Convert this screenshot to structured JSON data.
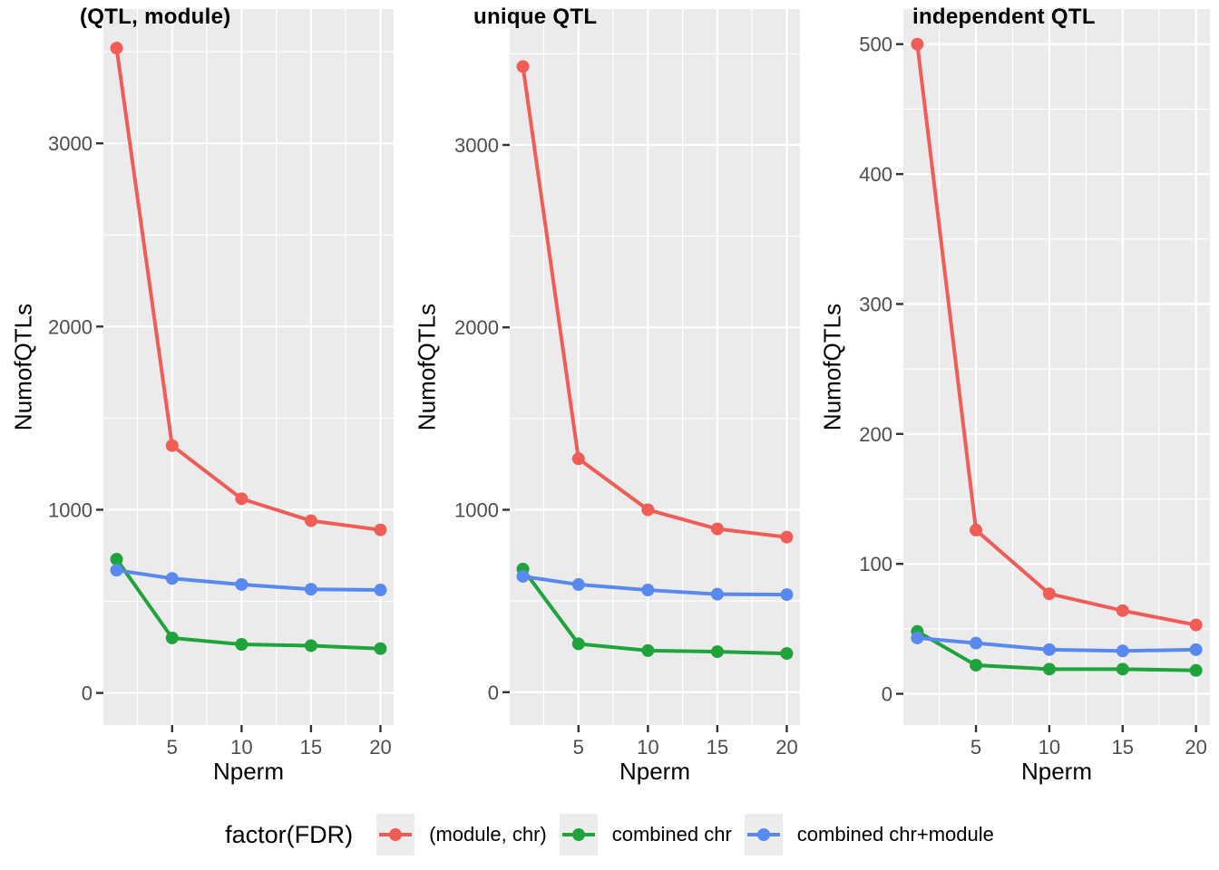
{
  "figure": {
    "background": "#FFFFFF",
    "panel_bg": "#EBEBEB",
    "grid_color": "#FFFFFF",
    "tick_mark_color": "#333333",
    "tick_label_color": "#4D4D4D"
  },
  "legend": {
    "title": "factor(FDR)",
    "key_bg": "#ECECEC",
    "items": [
      {
        "label": "(module, chr)",
        "color": "#F05C56"
      },
      {
        "label": "combined chr",
        "color": "#1FA43C"
      },
      {
        "label": "combined chr+module",
        "color": "#5789EE"
      }
    ]
  },
  "chart_data": [
    {
      "type": "line",
      "title": "(QTL, module)",
      "xlabel": "Nperm",
      "ylabel": "NumofQTLs",
      "x": [
        1,
        5,
        10,
        15,
        20
      ],
      "series": [
        {
          "name": "(module, chr)",
          "color": "#F05C56",
          "values": [
            3520,
            1350,
            1060,
            940,
            890
          ]
        },
        {
          "name": "combined chr",
          "color": "#1FA43C",
          "values": [
            730,
            300,
            265,
            258,
            242
          ]
        },
        {
          "name": "combined chr+module",
          "color": "#5789EE",
          "values": [
            670,
            625,
            592,
            566,
            562
          ]
        }
      ],
      "x_ticks": [
        5,
        10,
        15,
        20
      ],
      "x_minor": [
        2.5,
        7.5,
        12.5,
        17.5
      ],
      "xlim": [
        0.05,
        20.95
      ],
      "y_ticks": [
        0,
        1000,
        2000,
        3000
      ],
      "y_minor": [
        500,
        1500,
        2500,
        3500
      ],
      "ylim": [
        -175,
        3733
      ],
      "grid": true,
      "legend_position": "bottom"
    },
    {
      "type": "line",
      "title": "unique QTL",
      "xlabel": "Nperm",
      "ylabel": "NumofQTLs",
      "x": [
        1,
        5,
        10,
        15,
        20
      ],
      "series": [
        {
          "name": "(module, chr)",
          "color": "#F05C56",
          "values": [
            3430,
            1280,
            1000,
            895,
            850
          ]
        },
        {
          "name": "combined chr",
          "color": "#1FA43C",
          "values": [
            675,
            265,
            228,
            222,
            212
          ]
        },
        {
          "name": "combined chr+module",
          "color": "#5789EE",
          "values": [
            635,
            590,
            560,
            537,
            535
          ]
        }
      ],
      "x_ticks": [
        5,
        10,
        15,
        20
      ],
      "x_minor": [
        2.5,
        7.5,
        12.5,
        17.5
      ],
      "xlim": [
        0.05,
        20.95
      ],
      "y_ticks": [
        0,
        1000,
        2000,
        3000
      ],
      "y_minor": [
        500,
        1500,
        2500,
        3500
      ],
      "ylim": [
        -180,
        3745
      ],
      "grid": true,
      "legend_position": "bottom"
    },
    {
      "type": "line",
      "title": "independent QTL",
      "xlabel": "Nperm",
      "ylabel": "NumofQTLs",
      "x": [
        1,
        5,
        10,
        15,
        20
      ],
      "series": [
        {
          "name": "(module, chr)",
          "color": "#F05C56",
          "values": [
            500,
            126,
            77,
            64,
            53
          ]
        },
        {
          "name": "combined chr",
          "color": "#1FA43C",
          "values": [
            48,
            22,
            19,
            19,
            18
          ]
        },
        {
          "name": "combined chr+module",
          "color": "#5789EE",
          "values": [
            43,
            39,
            34,
            33,
            34
          ]
        }
      ],
      "x_ticks": [
        5,
        10,
        15,
        20
      ],
      "x_minor": [
        2.5,
        7.5,
        12.5,
        17.5
      ],
      "xlim": [
        0.05,
        20.95
      ],
      "y_ticks": [
        0,
        100,
        200,
        300,
        400,
        500
      ],
      "y_minor": [
        50,
        150,
        250,
        350,
        450
      ],
      "ylim": [
        -24,
        527
      ],
      "grid": true,
      "legend_position": "bottom"
    }
  ]
}
